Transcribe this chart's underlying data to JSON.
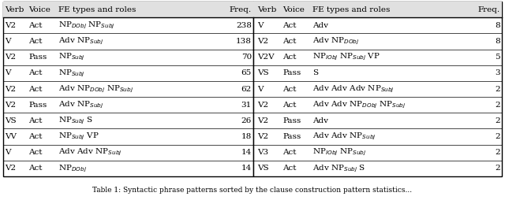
{
  "headers": [
    "Verb",
    "Voice",
    "FE types and roles",
    "Freq.",
    "Verb",
    "Voice",
    "FE types and roles",
    "Freq."
  ],
  "rows_left": [
    [
      "V2",
      "Act",
      "NP$_{DObj}$ NP$_{Subj}$",
      "238"
    ],
    [
      "V",
      "Act",
      "Adv NP$_{Subj}$",
      "138"
    ],
    [
      "V2",
      "Pass",
      "NP$_{Subj}$",
      "70"
    ],
    [
      "V",
      "Act",
      "NP$_{Subj}$",
      "65"
    ],
    [
      "V2",
      "Act",
      "Adv NP$_{DObj}$ NP$_{Subj}$",
      "62"
    ],
    [
      "V2",
      "Pass",
      "Adv NP$_{Subj}$",
      "31"
    ],
    [
      "VS",
      "Act",
      "NP$_{Subj}$ S",
      "26"
    ],
    [
      "VV",
      "Act",
      "NP$_{Subj}$ VP",
      "18"
    ],
    [
      "V",
      "Act",
      "Adv Adv NP$_{Subj}$",
      "14"
    ],
    [
      "V2",
      "Act",
      "NP$_{DObj}$",
      "14"
    ]
  ],
  "rows_right": [
    [
      "V",
      "Act",
      "Adv",
      "8"
    ],
    [
      "V2",
      "Act",
      "Adv NP$_{DObj}$",
      "8"
    ],
    [
      "V2V",
      "Act",
      "NP$_{IObj}$ NP$_{Subj}$ VP",
      "5"
    ],
    [
      "VS",
      "Pass",
      "S",
      "3"
    ],
    [
      "V",
      "Act",
      "Adv Adv Adv NP$_{Subj}$",
      "2"
    ],
    [
      "V2",
      "Act",
      "Adv Adv NP$_{DObj}$ NP$_{Subj}$",
      "2"
    ],
    [
      "V2",
      "Pass",
      "Adv",
      "2"
    ],
    [
      "V2",
      "Pass",
      "Adv Adv NP$_{Subj}$",
      "2"
    ],
    [
      "V3",
      "Act",
      "NP$_{IObj}$ NP$_{Subj}$",
      "2"
    ],
    [
      "VS",
      "Act",
      "Adv NP$_{Subj}$ S",
      "2"
    ]
  ],
  "font_size": 7.5,
  "header_bg": "#e0e0e0",
  "caption": "Table 1: Syntactic phrase patterns sorted by the clause construction pattern statistics..."
}
